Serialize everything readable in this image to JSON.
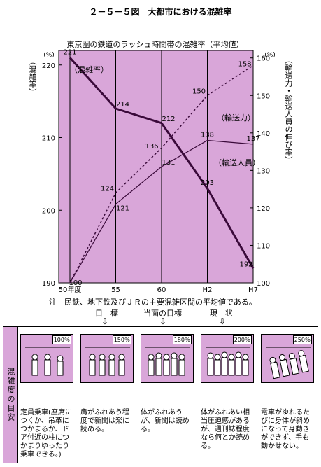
{
  "title": "２－５－５図　大都市における混雑率",
  "chart_data": {
    "type": "line",
    "title": "東京圏の鉄道のラッシュ時間帯の混雑率（平均値）",
    "x_categories": [
      "50年度",
      "55",
      "60",
      "H2",
      "H7"
    ],
    "y_left": {
      "unit": "(%)",
      "label": "（混雑率）",
      "ticks": [
        190,
        200,
        210,
        220
      ],
      "range": [
        190,
        222
      ]
    },
    "y_right": {
      "unit": "(%)",
      "label": "（輸送力・輸送人員の伸び率）",
      "ticks": [
        100,
        110,
        120,
        130,
        140,
        150,
        160
      ],
      "range": [
        100,
        162
      ]
    },
    "series": [
      {
        "name": "混雑率",
        "axis": "left",
        "style": "solid-bold",
        "values": [
          221,
          214,
          212,
          203,
          192
        ]
      },
      {
        "name": "輸送人員",
        "axis": "right",
        "style": "solid",
        "values": [
          100,
          121,
          131,
          138,
          137
        ]
      },
      {
        "name": "輸送力",
        "axis": "right",
        "style": "dotted",
        "values": [
          100,
          124,
          136,
          150,
          158
        ]
      }
    ],
    "grid": "vertical lines at each category",
    "background_color": "#d9a6d9"
  },
  "note": "注　民鉄、地下鉄及びＪＲの主要混雑区間の平均値である。",
  "markers": {
    "target": "目　標",
    "current_target": "当面の目標",
    "present": "現　状",
    "arrow": "⇩"
  },
  "guide": {
    "title": "混雑度の目安",
    "levels": [
      {
        "percent": "100％",
        "text": "定員乗車(座席につくか、吊革につかまるか、ドア付近の柱につかまりゆったり乗車できる。)"
      },
      {
        "percent": "150％",
        "text": "肩がふれあう程度で新聞は楽に読める。"
      },
      {
        "percent": "180％",
        "text": "体がふれあうが、新聞は読める。"
      },
      {
        "percent": "200％",
        "text": "体がふれあい相当圧迫感があるが、週刊誌程度なら何とか読める。"
      },
      {
        "percent": "250％",
        "text": "電車がゆれるたびに身体が斜めになって身動きができず、手も動かせない。"
      }
    ]
  }
}
